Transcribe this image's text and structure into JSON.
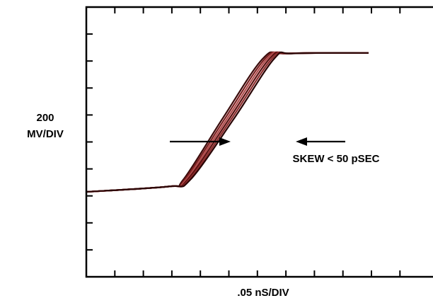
{
  "chart_data": {
    "type": "line",
    "title": "",
    "ylabel_value": "200",
    "ylabel_unit": "MV/DIV",
    "xlabel": ".05 nS/DIV",
    "annotation": "SKEW < 50 pSEC",
    "x_divisions": 12,
    "y_divisions": 10,
    "grid": false,
    "trace_colors": [
      "#3a0a0a",
      "#7a1e1e",
      "#b04a4a",
      "#5a1010",
      "#8c2a2a",
      "#2a0505"
    ],
    "series": [
      {
        "x": [
          0,
          2.9,
          3.4,
          4.8,
          6.2,
          7.0,
          9.9
        ],
        "y": [
          3.15,
          3.35,
          3.6,
          5.9,
          8.1,
          8.28,
          8.3
        ]
      },
      {
        "x": [
          0,
          2.9,
          3.45,
          4.88,
          6.28,
          7.05,
          9.9
        ],
        "y": [
          3.15,
          3.35,
          3.6,
          5.9,
          8.1,
          8.28,
          8.3
        ]
      },
      {
        "x": [
          0,
          2.9,
          3.5,
          4.96,
          6.36,
          7.1,
          9.9
        ],
        "y": [
          3.15,
          3.35,
          3.6,
          5.9,
          8.1,
          8.28,
          8.3
        ]
      },
      {
        "x": [
          0,
          2.9,
          3.55,
          5.04,
          6.44,
          7.15,
          9.9
        ],
        "y": [
          3.15,
          3.35,
          3.6,
          5.9,
          8.1,
          8.28,
          8.3
        ]
      },
      {
        "x": [
          0,
          2.9,
          3.6,
          5.12,
          6.52,
          7.2,
          9.9
        ],
        "y": [
          3.15,
          3.35,
          3.6,
          5.9,
          8.1,
          8.28,
          8.3
        ]
      },
      {
        "x": [
          0,
          2.9,
          3.65,
          5.2,
          6.6,
          7.25,
          9.9
        ],
        "y": [
          3.15,
          3.35,
          3.6,
          5.9,
          8.1,
          8.28,
          8.3
        ]
      }
    ]
  }
}
